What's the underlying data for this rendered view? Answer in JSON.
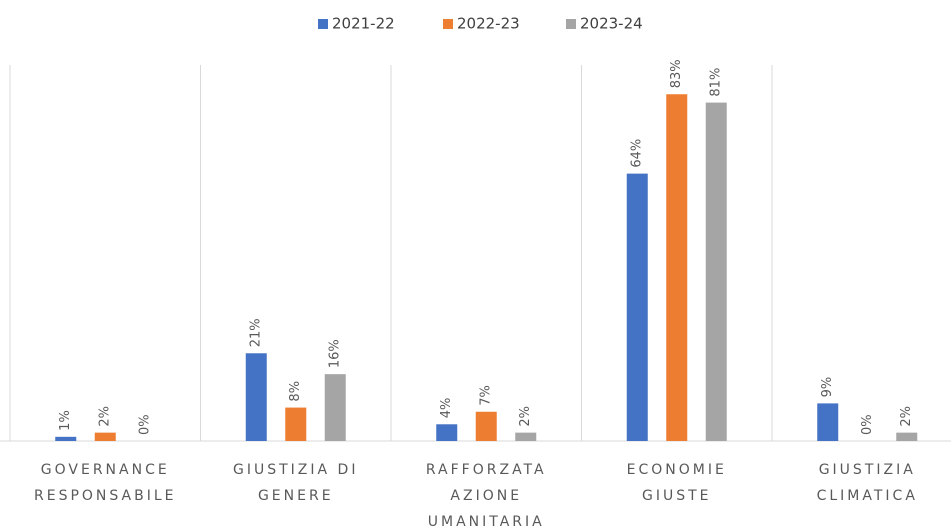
{
  "chart_data": {
    "type": "bar",
    "categories": [
      [
        "GOVERNANCE",
        "RESPONSABILE"
      ],
      [
        "GIUSTIZIA DI",
        "GENERE"
      ],
      [
        "RAFFORZATA",
        "AZIONE",
        "UMANITARIA"
      ],
      [
        "ECONOMIE",
        "GIUSTE"
      ],
      [
        "GIUSTIZIA",
        "CLIMATICA"
      ]
    ],
    "series": [
      {
        "name": "2021-22",
        "color": "#4472c4",
        "values": [
          1,
          21,
          4,
          64,
          9
        ],
        "value_labels": [
          "1%",
          "21%",
          "4%",
          "64%",
          "9%"
        ]
      },
      {
        "name": "2022-23",
        "color": "#ed7d31",
        "values": [
          2,
          8,
          7,
          83,
          0
        ],
        "value_labels": [
          "2%",
          "8%",
          "7%",
          "83%",
          "0%"
        ]
      },
      {
        "name": "2023-24",
        "color": "#a5a5a5",
        "values": [
          0,
          16,
          2,
          81,
          2
        ],
        "value_labels": [
          "0%",
          "16%",
          "2%",
          "81%",
          "2%"
        ]
      }
    ],
    "ylim": [
      0,
      90
    ],
    "legend": "top"
  }
}
